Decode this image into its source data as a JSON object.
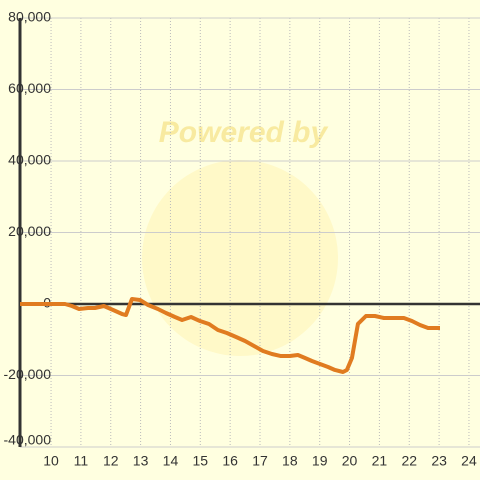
{
  "chart_data": {
    "type": "line",
    "watermark": "Powered by",
    "x": [
      8.96,
      10.47,
      10.7,
      10.94,
      11.24,
      11.47,
      11.77,
      12.08,
      12.38,
      12.51,
      12.71,
      12.98,
      13.25,
      13.58,
      13.85,
      14.15,
      14.39,
      14.69,
      14.99,
      15.29,
      15.59,
      15.89,
      16.2,
      16.5,
      16.8,
      17.1,
      17.4,
      17.7,
      18.0,
      18.27,
      18.51,
      18.74,
      19.01,
      19.28,
      19.51,
      19.78,
      19.91,
      20.08,
      20.28,
      20.55,
      20.85,
      21.15,
      21.49,
      21.82,
      22.09,
      22.36,
      22.63,
      23.03
    ],
    "series": [
      {
        "color": "#e07b20",
        "values": [
          0,
          0,
          -560,
          -1400,
          -1120,
          -1120,
          -560,
          -1680,
          -2800,
          -3080,
          1400,
          1120,
          -280,
          -1400,
          -2520,
          -3640,
          -4480,
          -3640,
          -4760,
          -5590,
          -7270,
          -8110,
          -9230,
          -10350,
          -11750,
          -13150,
          -13990,
          -14550,
          -14550,
          -14270,
          -15100,
          -15940,
          -16780,
          -17620,
          -18460,
          -19020,
          -18460,
          -15100,
          -5590,
          -3360,
          -3360,
          -3920,
          -3920,
          -3920,
          -4760,
          -5870,
          -6710,
          -6710
        ]
      }
    ],
    "xlim": [
      8.96,
      24.37
    ],
    "xticks": [
      10,
      11,
      12,
      13,
      14,
      15,
      16,
      17,
      18,
      19,
      20,
      21,
      22,
      23,
      24
    ],
    "ylim": [
      -40000,
      80000
    ],
    "yticks": [
      {
        "value": -40000,
        "label": "-40,000"
      },
      {
        "value": -20000,
        "label": "-20,000"
      },
      0,
      {
        "value": 20000,
        "label": "20,000"
      },
      {
        "value": 40000,
        "label": "40,000"
      },
      {
        "value": 60000,
        "label": "60,000"
      },
      {
        "value": 80000,
        "label": "80,000"
      }
    ],
    "grid": true
  }
}
